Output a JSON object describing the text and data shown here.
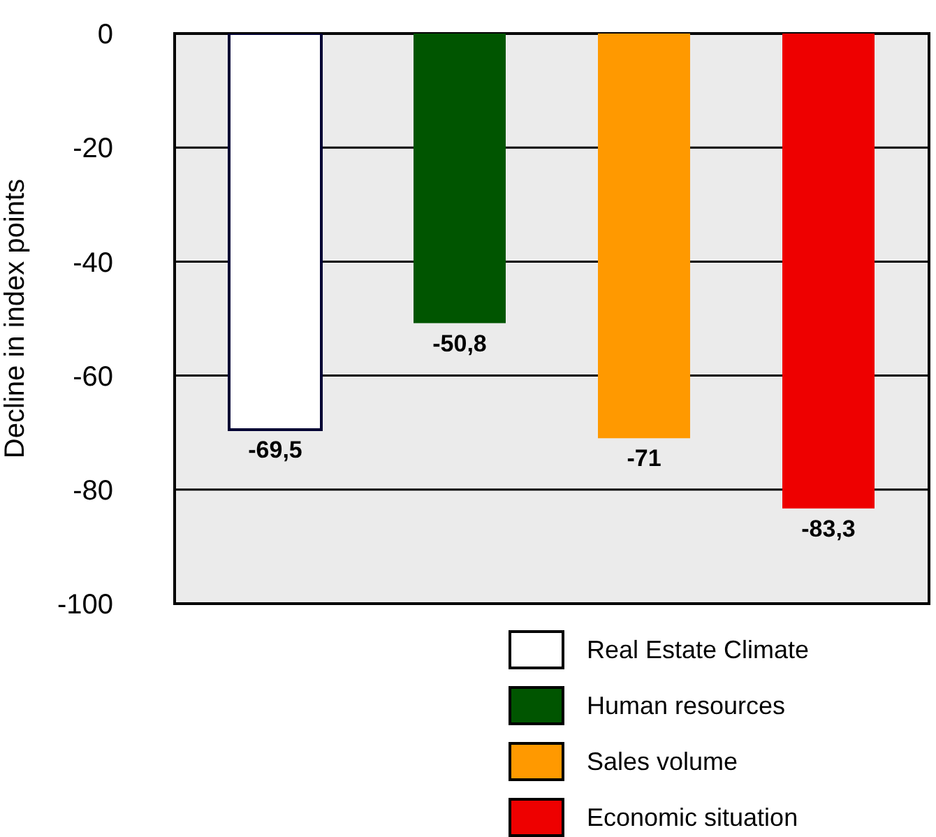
{
  "chart_data": {
    "type": "bar",
    "ylabel": "Decline in index points",
    "categories": [
      null
    ],
    "series": [
      {
        "name": "Real Estate Climate",
        "color": "#ffffff",
        "values": [
          -69.5
        ],
        "value_labels": [
          "-69,5"
        ]
      },
      {
        "name": "Human resources",
        "color": "#005500",
        "values": [
          -50.8
        ],
        "value_labels": [
          "-50,8"
        ]
      },
      {
        "name": "Sales volume",
        "color": "#ff9900",
        "values": [
          -71
        ],
        "value_labels": [
          "-71"
        ]
      },
      {
        "name": "Economic situation",
        "color": "#ee0000",
        "values": [
          -83.3
        ],
        "value_labels": [
          "-83,3"
        ]
      }
    ],
    "ylim": [
      -100,
      0
    ],
    "yticks": [
      -100,
      -80,
      -60,
      -40,
      -20,
      0
    ],
    "grid": "y",
    "legend": "bottom"
  }
}
